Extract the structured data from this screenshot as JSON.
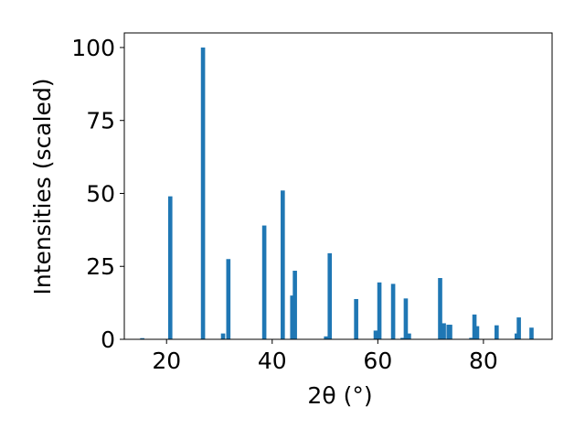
{
  "chart_data": {
    "type": "bar",
    "xlabel": "2θ (°)",
    "ylabel": "Intensities (scaled)",
    "xlim": [
      12,
      93
    ],
    "ylim": [
      0,
      105
    ],
    "x_ticks": [
      20,
      40,
      60,
      80
    ],
    "y_ticks": [
      0,
      25,
      50,
      75,
      100
    ],
    "x_tick_labels": [
      "20",
      "40",
      "60",
      "80"
    ],
    "y_tick_labels": [
      "0",
      "25",
      "50",
      "75",
      "100"
    ],
    "grid": false,
    "legend": "none",
    "bar_color": "#1f77b4",
    "bar_width": 0.8,
    "points": [
      {
        "x": 15.4,
        "y": 0.4
      },
      {
        "x": 20.7,
        "y": 49
      },
      {
        "x": 26.9,
        "y": 100
      },
      {
        "x": 30.7,
        "y": 2
      },
      {
        "x": 31.7,
        "y": 27.5
      },
      {
        "x": 38.5,
        "y": 39
      },
      {
        "x": 42.0,
        "y": 51
      },
      {
        "x": 43.8,
        "y": 15
      },
      {
        "x": 44.3,
        "y": 23.5
      },
      {
        "x": 50.2,
        "y": 1
      },
      {
        "x": 50.9,
        "y": 29.5
      },
      {
        "x": 55.9,
        "y": 13.8
      },
      {
        "x": 59.6,
        "y": 3
      },
      {
        "x": 60.3,
        "y": 19.5
      },
      {
        "x": 62.9,
        "y": 19
      },
      {
        "x": 64.7,
        "y": 0.5
      },
      {
        "x": 65.3,
        "y": 14
      },
      {
        "x": 65.9,
        "y": 2
      },
      {
        "x": 71.8,
        "y": 21
      },
      {
        "x": 72.5,
        "y": 5.5
      },
      {
        "x": 73.4,
        "y": 5
      },
      {
        "x": 73.7,
        "y": 5
      },
      {
        "x": 77.7,
        "y": 0.5
      },
      {
        "x": 78.3,
        "y": 8.5
      },
      {
        "x": 78.8,
        "y": 4.5
      },
      {
        "x": 82.5,
        "y": 4.8
      },
      {
        "x": 86.3,
        "y": 2
      },
      {
        "x": 86.7,
        "y": 7.5
      },
      {
        "x": 89.1,
        "y": 4
      }
    ]
  }
}
